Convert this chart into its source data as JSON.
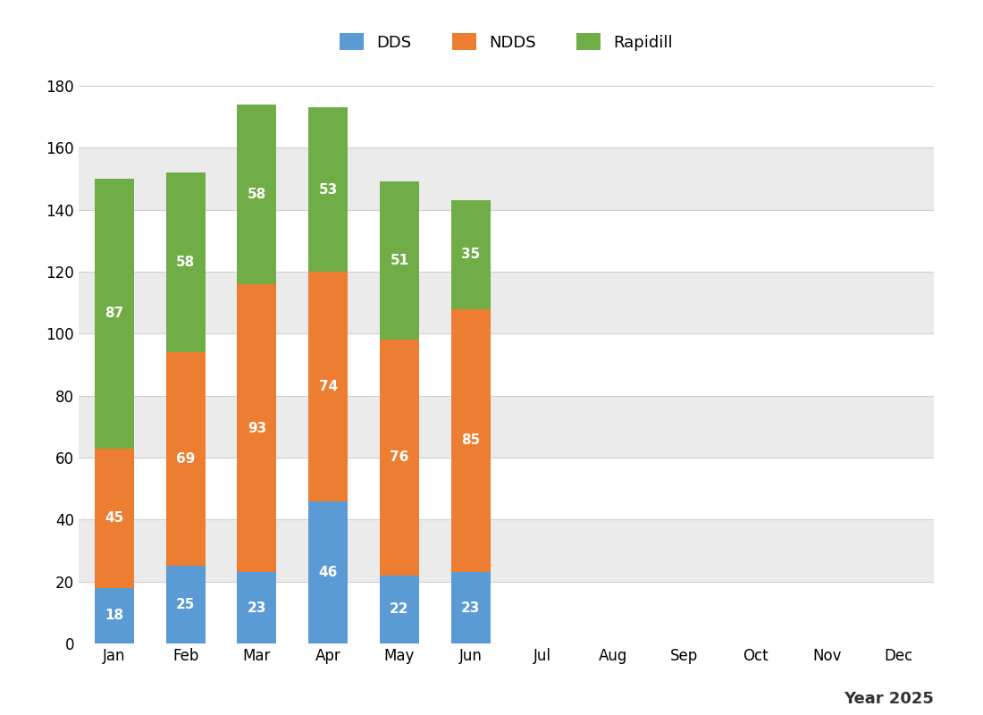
{
  "months": [
    "Jan",
    "Feb",
    "Mar",
    "Apr",
    "May",
    "Jun",
    "Jul",
    "Aug",
    "Sep",
    "Oct",
    "Nov",
    "Dec"
  ],
  "dds": [
    18,
    25,
    23,
    46,
    22,
    23,
    0,
    0,
    0,
    0,
    0,
    0
  ],
  "ndds": [
    45,
    69,
    93,
    74,
    76,
    85,
    0,
    0,
    0,
    0,
    0,
    0
  ],
  "rapidill": [
    87,
    58,
    58,
    53,
    51,
    35,
    0,
    0,
    0,
    0,
    0,
    0
  ],
  "dds_color": "#5b9bd5",
  "ndds_color": "#ed7d31",
  "rapidill_color": "#70ad47",
  "legend_labels": [
    "DDS",
    "NDDS",
    "Rapidill"
  ],
  "ymax": 180,
  "yticks": [
    0,
    20,
    40,
    60,
    80,
    100,
    120,
    140,
    160,
    180
  ],
  "year_label": "Year 2025",
  "figure_bg": "#ffffff",
  "band_white": "#ffffff",
  "band_grey": "#ebebeb",
  "grid_line_color": "#d0d0d0",
  "bar_width": 0.55,
  "label_fontsize": 11,
  "legend_fontsize": 13,
  "year_fontsize": 13,
  "tick_fontsize": 12
}
